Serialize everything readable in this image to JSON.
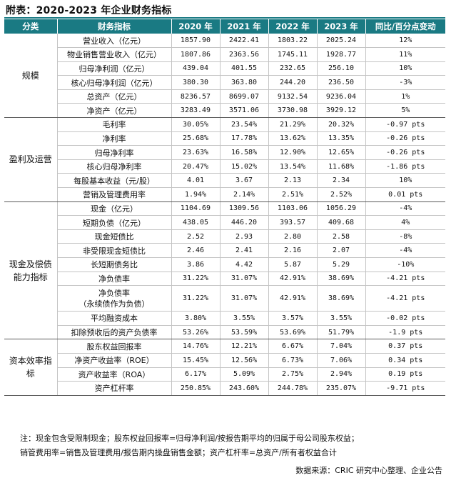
{
  "title": "附表：2020-2023 年企业财务指标",
  "headers": [
    "分类",
    "财务指标",
    "2020 年",
    "2021 年",
    "2022 年",
    "2023 年",
    "同比/百分点变动"
  ],
  "groups": [
    {
      "category": "规模",
      "rows": [
        {
          "metric": "营业收入（亿元）",
          "values": [
            "1857.90",
            "2422.41",
            "1803.22",
            "2025.24"
          ],
          "change": "12%"
        },
        {
          "metric": "物业销售营业收入（亿元）",
          "values": [
            "1807.86",
            "2363.56",
            "1745.11",
            "1928.77"
          ],
          "change": "11%"
        },
        {
          "metric": "归母净利润（亿元）",
          "values": [
            "439.04",
            "401.55",
            "232.65",
            "256.10"
          ],
          "change": "10%"
        },
        {
          "metric": "核心归母净利润（亿元）",
          "values": [
            "380.30",
            "363.80",
            "244.20",
            "236.50"
          ],
          "change": "-3%"
        },
        {
          "metric": "总资产（亿元）",
          "values": [
            "8236.57",
            "8699.07",
            "9132.54",
            "9236.04"
          ],
          "change": "1%"
        },
        {
          "metric": "净资产（亿元）",
          "values": [
            "3283.49",
            "3571.06",
            "3730.98",
            "3929.12"
          ],
          "change": "5%"
        }
      ]
    },
    {
      "category": "盈利及运营",
      "rows": [
        {
          "metric": "毛利率",
          "values": [
            "30.05%",
            "23.54%",
            "21.29%",
            "20.32%"
          ],
          "change": "-0.97 pts"
        },
        {
          "metric": "净利率",
          "values": [
            "25.68%",
            "17.78%",
            "13.62%",
            "13.35%"
          ],
          "change": "-0.26 pts"
        },
        {
          "metric": "归母净利率",
          "values": [
            "23.63%",
            "16.58%",
            "12.90%",
            "12.65%"
          ],
          "change": "-0.26 pts"
        },
        {
          "metric": "核心归母净利率",
          "values": [
            "20.47%",
            "15.02%",
            "13.54%",
            "11.68%"
          ],
          "change": "-1.86 pts"
        },
        {
          "metric": "每股基本收益（元/股）",
          "values": [
            "4.01",
            "3.67",
            "2.13",
            "2.34"
          ],
          "change": "10%"
        },
        {
          "metric": "营销及管理费用率",
          "values": [
            "1.94%",
            "2.14%",
            "2.51%",
            "2.52%"
          ],
          "change": "0.01 pts"
        }
      ]
    },
    {
      "category": "现金及偿债能力指标",
      "rows": [
        {
          "metric": "现金（亿元）",
          "values": [
            "1104.69",
            "1309.56",
            "1103.06",
            "1056.29"
          ],
          "change": "-4%"
        },
        {
          "metric": "短期负债（亿元）",
          "values": [
            "438.05",
            "446.20",
            "393.57",
            "409.68"
          ],
          "change": "4%"
        },
        {
          "metric": "现金短债比",
          "values": [
            "2.52",
            "2.93",
            "2.80",
            "2.58"
          ],
          "change": "-8%"
        },
        {
          "metric": "非受限现金短债比",
          "values": [
            "2.46",
            "2.41",
            "2.16",
            "2.07"
          ],
          "change": "-4%"
        },
        {
          "metric": "长短期债务比",
          "values": [
            "3.86",
            "4.42",
            "5.87",
            "5.29"
          ],
          "change": "-10%"
        },
        {
          "metric": "净负债率",
          "values": [
            "31.22%",
            "31.07%",
            "42.91%",
            "38.69%"
          ],
          "change": "-4.21 pts"
        },
        {
          "metric": "净负债率",
          "metric2": "（永续债作为负债）",
          "values": [
            "31.22%",
            "31.07%",
            "42.91%",
            "38.69%"
          ],
          "change": "-4.21 pts"
        },
        {
          "metric": "平均融资成本",
          "values": [
            "3.80%",
            "3.55%",
            "3.57%",
            "3.55%"
          ],
          "change": "-0.02 pts"
        },
        {
          "metric": "扣除预收后的资产负债率",
          "values": [
            "53.26%",
            "53.59%",
            "53.69%",
            "51.79%"
          ],
          "change": "-1.9 pts"
        }
      ]
    },
    {
      "category": "资本效率指标",
      "rows": [
        {
          "metric": "股东权益回报率",
          "values": [
            "14.76%",
            "12.21%",
            "6.67%",
            "7.04%"
          ],
          "change": "0.37 pts"
        },
        {
          "metric": "净资产收益率（ROE）",
          "values": [
            "15.45%",
            "12.56%",
            "6.73%",
            "7.06%"
          ],
          "change": "0.34 pts"
        },
        {
          "metric": "资产收益率（ROA）",
          "values": [
            "6.17%",
            "5.09%",
            "2.75%",
            "2.94%"
          ],
          "change": "0.19 pts"
        },
        {
          "metric": "资产杠杆率",
          "values": [
            "250.85%",
            "243.60%",
            "244.78%",
            "235.07%"
          ],
          "change": "-9.71 pts"
        }
      ]
    }
  ],
  "notes": [
    "注：现金包含受限制现金；股东权益回报率=归母净利润/按报告期平均的归属于母公司股东权益；",
    "销管费用率=销售及管理费用/报告期内操盘销售金额；资产杠杆率=总资产/所有者权益合计"
  ],
  "source": "数据来源：CRIC 研究中心整理、企业公告",
  "colors": {
    "header_bg": "#1a7a83",
    "header_text": "#ffffff"
  }
}
